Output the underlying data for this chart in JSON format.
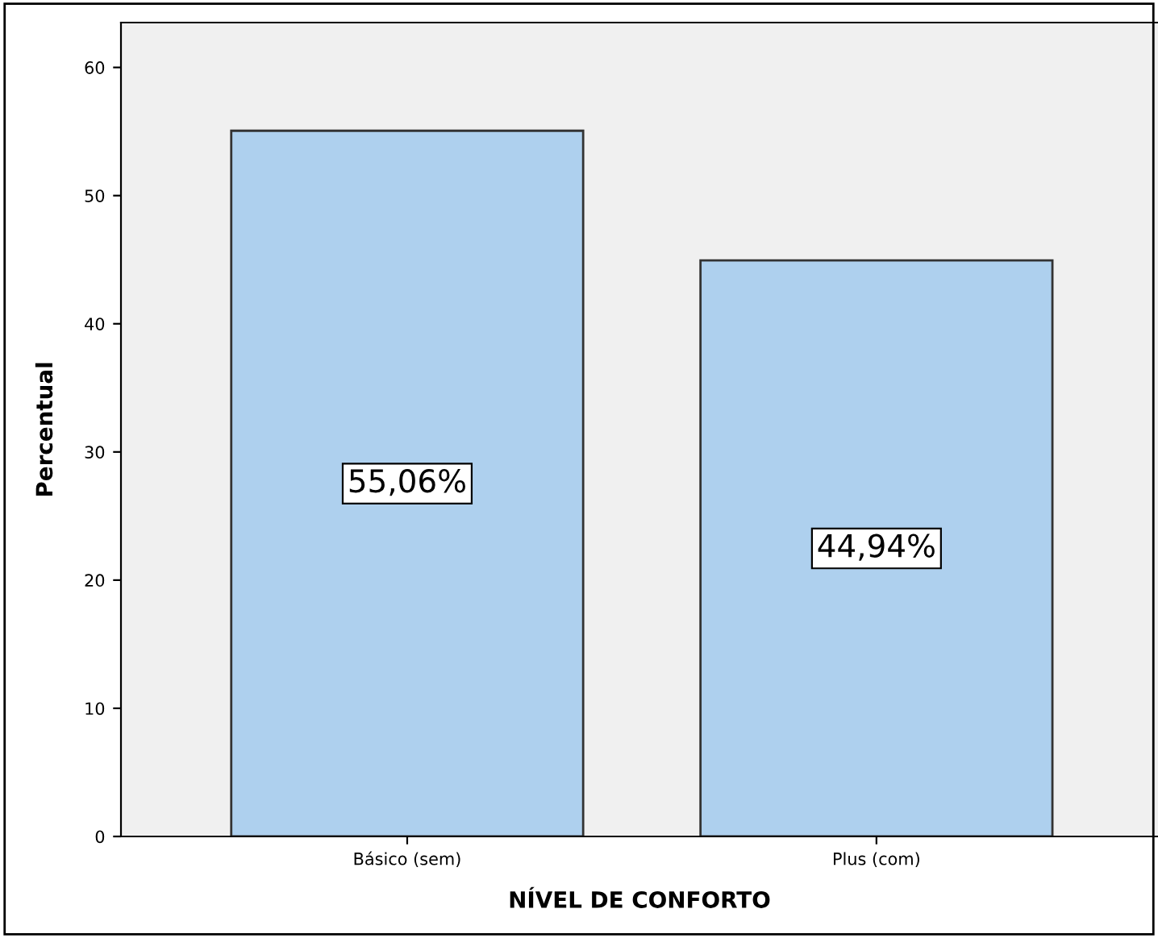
{
  "chart_data": {
    "type": "bar",
    "xlabel": "NÍVEL DE CONFORTO",
    "ylabel": "Percentual",
    "categories": [
      "Básico (sem)",
      "Plus (com)"
    ],
    "values": [
      55.06,
      44.94
    ],
    "value_labels": [
      "55,06%",
      "44,94%"
    ],
    "color": "#aed0ee",
    "ylim": [
      0,
      63.5
    ],
    "yticks": [
      0,
      10,
      20,
      30,
      40,
      50,
      60
    ],
    "grid": false
  }
}
